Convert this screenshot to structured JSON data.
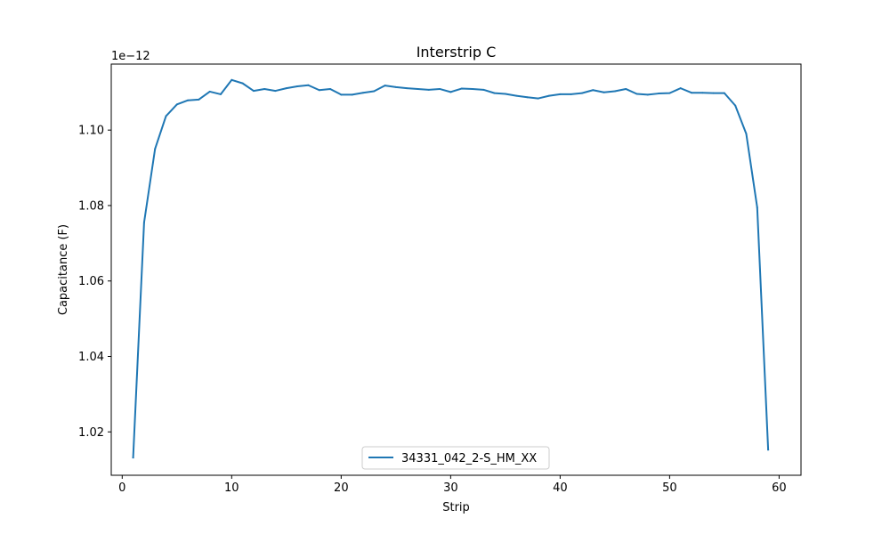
{
  "chart_data": {
    "type": "line",
    "title": "Interstrip C",
    "xlabel": "Strip",
    "ylabel": "Capacitance (F)",
    "y_offset_text": "1e−12",
    "xlim": [
      -1,
      62
    ],
    "ylim": [
      1.0085,
      1.1175
    ],
    "x_ticks": [
      0,
      10,
      20,
      30,
      40,
      50,
      60
    ],
    "y_ticks": [
      1.02,
      1.04,
      1.06,
      1.08,
      1.1
    ],
    "y_tick_labels": [
      "1.02",
      "1.04",
      "1.06",
      "1.08",
      "1.10"
    ],
    "grid": false,
    "legend_position": "lower center",
    "series": [
      {
        "name": "34331_042_2-S_HM_XX",
        "color": "#1f77b4",
        "x": [
          1,
          2,
          3,
          4,
          5,
          6,
          7,
          8,
          9,
          10,
          11,
          12,
          13,
          14,
          15,
          16,
          17,
          18,
          19,
          20,
          21,
          22,
          23,
          24,
          25,
          26,
          27,
          28,
          29,
          30,
          31,
          32,
          33,
          34,
          35,
          36,
          37,
          38,
          39,
          40,
          41,
          42,
          43,
          44,
          45,
          46,
          47,
          48,
          49,
          50,
          51,
          52,
          53,
          54,
          55,
          56,
          57,
          58,
          59
        ],
        "y": [
          1.0132,
          1.0755,
          1.095,
          1.1037,
          1.1068,
          1.1079,
          1.1081,
          1.1102,
          1.1095,
          1.1133,
          1.1124,
          1.1104,
          1.1109,
          1.1104,
          1.1111,
          1.1116,
          1.1119,
          1.1106,
          1.1109,
          1.1094,
          1.1094,
          1.1099,
          1.1103,
          1.1118,
          1.1114,
          1.1111,
          1.1109,
          1.1107,
          1.1109,
          1.1101,
          1.111,
          1.1109,
          1.1107,
          1.1098,
          1.1096,
          1.1091,
          1.1087,
          1.1084,
          1.1091,
          1.1095,
          1.1095,
          1.1098,
          1.1106,
          1.11,
          1.1103,
          1.1109,
          1.1096,
          1.1094,
          1.1097,
          1.1098,
          1.1111,
          1.1099,
          1.1099,
          1.1098,
          1.1098,
          1.1065,
          1.099,
          1.0795,
          1.0153
        ]
      }
    ]
  }
}
